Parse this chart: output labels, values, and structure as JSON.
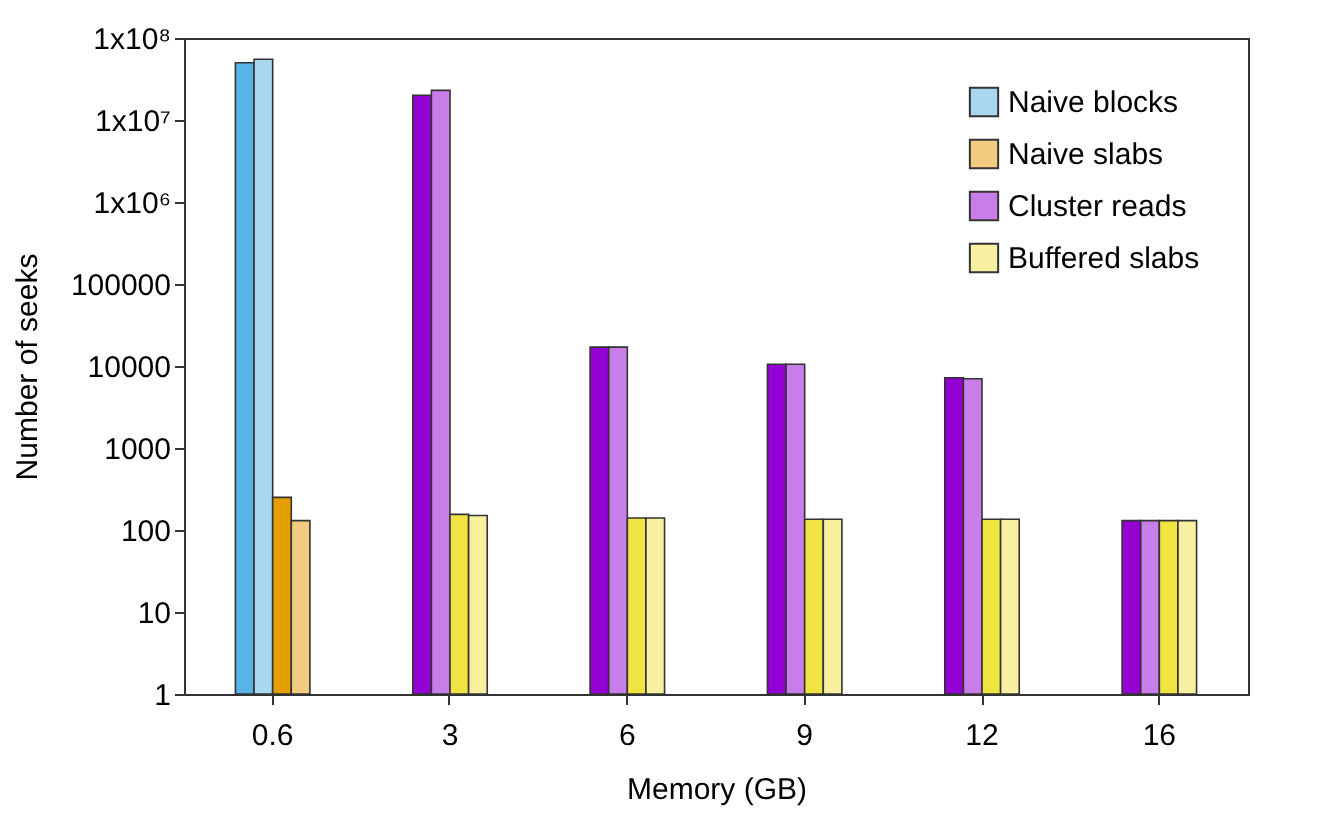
{
  "chart_data": {
    "type": "bar",
    "xlabel": "Memory (GB)",
    "ylabel": "Number of seeks",
    "categories": [
      "0.6",
      "3",
      "6",
      "9",
      "12",
      "16"
    ],
    "series": [
      {
        "color": "#56b4e9",
        "values": [
          50000000,
          null,
          null,
          null,
          null,
          null
        ]
      },
      {
        "name": "Naive blocks",
        "color": "#a8d8f0",
        "values": [
          55000000,
          null,
          null,
          null,
          null,
          null
        ]
      },
      {
        "color": "#e69f00",
        "values": [
          250,
          null,
          null,
          null,
          null,
          null
        ]
      },
      {
        "name": "Naive slabs",
        "color": "#f2cb80",
        "values": [
          130,
          null,
          null,
          null,
          null,
          null
        ]
      },
      {
        "color": "#9400d3",
        "values": [
          null,
          20000000,
          17000,
          10500,
          7200,
          130
        ]
      },
      {
        "name": "Cluster reads",
        "color": "#c87ee8",
        "values": [
          null,
          23000000,
          17000,
          10500,
          7000,
          130
        ]
      },
      {
        "color": "#f0e442",
        "values": [
          null,
          155,
          140,
          135,
          135,
          130
        ]
      },
      {
        "name": "Buffered slabs",
        "color": "#f7f0a0",
        "values": [
          null,
          150,
          140,
          135,
          135,
          130
        ]
      }
    ],
    "log": "y",
    "ylim": [
      1,
      100000000
    ],
    "yticks": [
      1,
      10,
      100,
      1000,
      10000,
      100000,
      {
        "value": 1000000,
        "label": "1x10⁶"
      },
      {
        "value": 10000000,
        "label": "1x10⁷"
      },
      {
        "value": 100000000,
        "label": "1x10⁸"
      }
    ],
    "grid": false,
    "legend": "top right"
  }
}
